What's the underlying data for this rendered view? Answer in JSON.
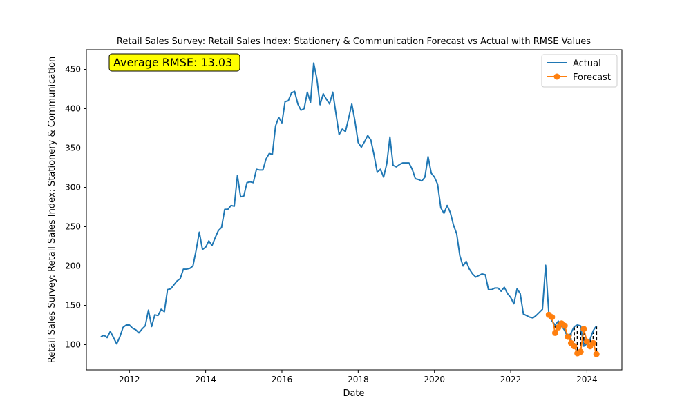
{
  "chart_data": {
    "type": "line",
    "title": "Retail Sales Survey: Retail Sales Index: Stationery & Communication Forecast vs Actual with RMSE Values",
    "xlabel": "Date",
    "ylabel": "Retail Sales Survey: Retail Sales Index: Stationery & Communication",
    "xlim": [
      "2010-11-15",
      "2024-12-01"
    ],
    "ylim": [
      68,
      475
    ],
    "x_ticks": [
      "2012",
      "2014",
      "2016",
      "2018",
      "2020",
      "2022",
      "2024"
    ],
    "y_ticks": [
      100,
      150,
      200,
      250,
      300,
      350,
      400,
      450
    ],
    "grid": false,
    "legend_position": "top-right",
    "annotation": "Average RMSE: 13.03",
    "colors": {
      "actual": "#1f77b4",
      "forecast": "#ff7f0e",
      "error": "#000000",
      "annotation_bg": "#ffff00"
    },
    "series": [
      {
        "name": "Actual",
        "dates": [
          "2011-04",
          "2011-05",
          "2011-06",
          "2011-07",
          "2011-08",
          "2011-09",
          "2011-10",
          "2011-11",
          "2011-12",
          "2012-01",
          "2012-02",
          "2012-03",
          "2012-04",
          "2012-05",
          "2012-06",
          "2012-07",
          "2012-08",
          "2012-09",
          "2012-10",
          "2012-11",
          "2012-12",
          "2013-01",
          "2013-02",
          "2013-03",
          "2013-04",
          "2013-05",
          "2013-06",
          "2013-07",
          "2013-08",
          "2013-09",
          "2013-10",
          "2013-11",
          "2013-12",
          "2014-01",
          "2014-02",
          "2014-03",
          "2014-04",
          "2014-05",
          "2014-06",
          "2014-07",
          "2014-08",
          "2014-09",
          "2014-10",
          "2014-11",
          "2014-12",
          "2015-01",
          "2015-02",
          "2015-03",
          "2015-04",
          "2015-05",
          "2015-06",
          "2015-07",
          "2015-08",
          "2015-09",
          "2015-10",
          "2015-11",
          "2015-12",
          "2016-01",
          "2016-02",
          "2016-03",
          "2016-04",
          "2016-05",
          "2016-06",
          "2016-07",
          "2016-08",
          "2016-09",
          "2016-10",
          "2016-11",
          "2016-12",
          "2017-01",
          "2017-02",
          "2017-03",
          "2017-04",
          "2017-05",
          "2017-06",
          "2017-07",
          "2017-08",
          "2017-09",
          "2017-10",
          "2017-11",
          "2017-12",
          "2018-01",
          "2018-02",
          "2018-03",
          "2018-04",
          "2018-05",
          "2018-06",
          "2018-07",
          "2018-08",
          "2018-09",
          "2018-10",
          "2018-11",
          "2018-12",
          "2019-01",
          "2019-02",
          "2019-03",
          "2019-04",
          "2019-05",
          "2019-06",
          "2019-07",
          "2019-08",
          "2019-09",
          "2019-10",
          "2019-11",
          "2019-12",
          "2020-01",
          "2020-02",
          "2020-03",
          "2020-04",
          "2020-05",
          "2020-06",
          "2020-07",
          "2020-08",
          "2020-09",
          "2020-10",
          "2020-11",
          "2020-12",
          "2021-01",
          "2021-02",
          "2021-03",
          "2021-04",
          "2021-05",
          "2021-06",
          "2021-07",
          "2021-08",
          "2021-09",
          "2021-10",
          "2021-11",
          "2021-12",
          "2022-01",
          "2022-02",
          "2022-03",
          "2022-04",
          "2022-05",
          "2022-06",
          "2022-07",
          "2022-08",
          "2022-09",
          "2022-10",
          "2022-11",
          "2022-12",
          "2023-01",
          "2023-02",
          "2023-03",
          "2023-04",
          "2023-05",
          "2023-06",
          "2023-07",
          "2023-08",
          "2023-09",
          "2023-10",
          "2023-11",
          "2023-12",
          "2024-01",
          "2024-02",
          "2024-03",
          "2024-04"
        ],
        "values": [
          110,
          112,
          109,
          117,
          109,
          101,
          110,
          122,
          125,
          125,
          121,
          119,
          115,
          120,
          124,
          144,
          123,
          138,
          137,
          145,
          142,
          170,
          171,
          176,
          181,
          184,
          196,
          196,
          197,
          200,
          220,
          243,
          221,
          224,
          232,
          226,
          236,
          245,
          249,
          272,
          272,
          277,
          276,
          315,
          288,
          289,
          306,
          307,
          306,
          323,
          322,
          322,
          336,
          343,
          342,
          378,
          389,
          382,
          409,
          410,
          420,
          422,
          406,
          398,
          400,
          421,
          408,
          458,
          438,
          405,
          419,
          412,
          406,
          421,
          394,
          367,
          374,
          371,
          388,
          406,
          384,
          357,
          351,
          358,
          366,
          360,
          341,
          319,
          323,
          313,
          330,
          364,
          328,
          326,
          329,
          331,
          331,
          331,
          323,
          311,
          310,
          308,
          313,
          339,
          318,
          313,
          304,
          274,
          267,
          277,
          268,
          252,
          241,
          213,
          200,
          206,
          196,
          190,
          186,
          188,
          190,
          189,
          170,
          170,
          172,
          172,
          168,
          173,
          165,
          160,
          152,
          171,
          165,
          139,
          137,
          135,
          134,
          137,
          141,
          145,
          201,
          140,
          130,
          125,
          130,
          124,
          118,
          109,
          115,
          123,
          125,
          124,
          98,
          101,
          107,
          118,
          124
        ]
      },
      {
        "name": "Forecast",
        "dates": [
          "2023-01",
          "2023-02",
          "2023-03",
          "2023-04",
          "2023-05",
          "2023-06",
          "2023-07",
          "2023-08",
          "2023-09",
          "2023-10",
          "2023-11",
          "2023-12",
          "2024-01",
          "2024-02",
          "2024-03",
          "2024-04"
        ],
        "values": [
          138,
          135,
          115,
          122,
          127,
          124,
          110,
          102,
          98,
          89,
          91,
          120,
          104,
          98,
          102,
          88
        ]
      }
    ]
  }
}
